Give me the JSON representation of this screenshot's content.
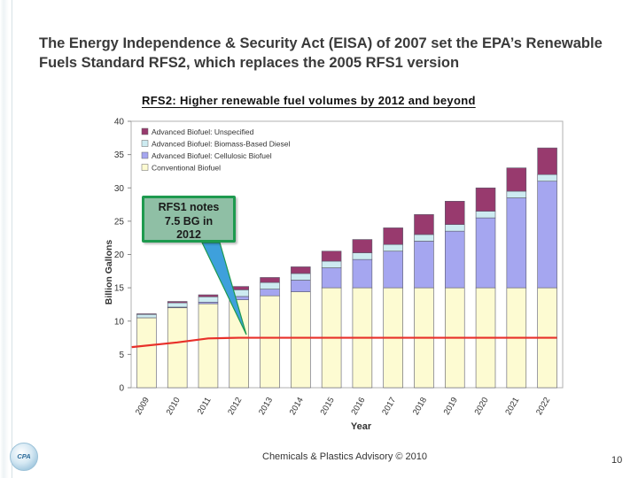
{
  "slide": {
    "title": "The Energy Independence & Security Act (EISA) of 2007 set the EPA’s Renewable Fuels Standard RFS2, which replaces the 2005 RFS1 version",
    "footer": "Chemicals & Plastics Advisory © 2010",
    "page_number": "10",
    "logo_text": "CPA"
  },
  "callout": {
    "line1": "RFS1 notes",
    "line2": "7.5 BG in",
    "line3": "2012"
  },
  "chart_data": {
    "type": "bar",
    "stacked": true,
    "title": "RFS2: Higher renewable fuel volumes by 2012 and beyond",
    "xlabel": "Year",
    "ylabel": "Billion Gallons",
    "ylim": [
      0,
      40
    ],
    "yticks": [
      0,
      5,
      10,
      15,
      20,
      25,
      30,
      35,
      40
    ],
    "grid": false,
    "legend_position": "top-left",
    "categories": [
      "2009",
      "2010",
      "2011",
      "2012",
      "2013",
      "2014",
      "2015",
      "2016",
      "2017",
      "2018",
      "2019",
      "2020",
      "2021",
      "2022"
    ],
    "series": [
      {
        "name": "Conventional Biofuel",
        "color": "#fdfbd2",
        "values": [
          10.5,
          12.0,
          12.6,
          13.2,
          13.8,
          14.4,
          15.0,
          15.0,
          15.0,
          15.0,
          15.0,
          15.0,
          15.0,
          15.0
        ]
      },
      {
        "name": "Advanced Biofuel: Cellulosic Biofuel",
        "color": "#a5a6f0",
        "values": [
          0,
          0.1,
          0.25,
          0.5,
          1.0,
          1.75,
          3.0,
          4.25,
          5.5,
          7.0,
          8.5,
          10.5,
          13.5,
          16.0
        ]
      },
      {
        "name": "Advanced Biofuel: Biomass-Based Diesel",
        "color": "#cdebf1",
        "values": [
          0.5,
          0.65,
          0.8,
          1.0,
          1.0,
          1.0,
          1.0,
          1.0,
          1.0,
          1.0,
          1.0,
          1.0,
          1.0,
          1.0
        ]
      },
      {
        "name": "Advanced Biofuel: Unspecified",
        "color": "#983a6e",
        "values": [
          0.1,
          0.2,
          0.3,
          0.5,
          0.75,
          1.0,
          1.5,
          2.0,
          2.5,
          3.0,
          3.5,
          3.5,
          3.5,
          4.0
        ]
      }
    ],
    "reference_line": {
      "name": "RFS1",
      "color": "#e8302a",
      "values": [
        6.1,
        6.8,
        7.4,
        7.5,
        7.5,
        7.5,
        7.5,
        7.5,
        7.5,
        7.5,
        7.5,
        7.5,
        7.5,
        7.5
      ]
    }
  }
}
